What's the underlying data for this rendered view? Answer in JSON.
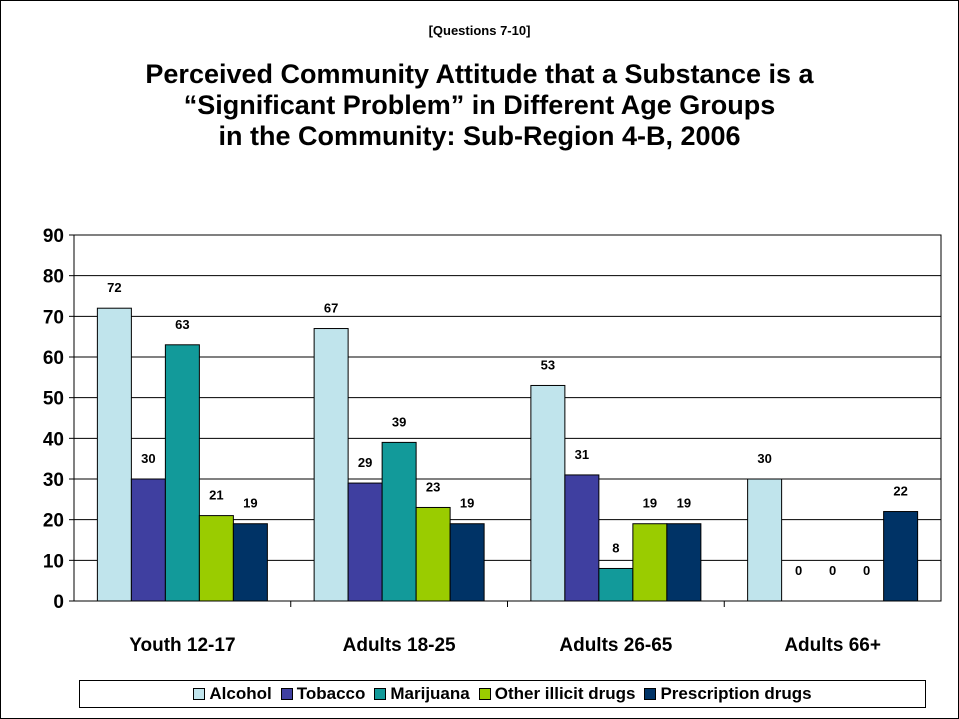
{
  "subtitle": "[Questions 7-10]",
  "title_lines": [
    "Perceived Community Attitude that a Substance is a",
    "“Significant Problem” in Different Age Groups",
    "in the Community: Sub-Region 4-B, 2006"
  ],
  "chart_data": {
    "type": "bar",
    "title": "Perceived Community Attitude that a Substance is a “Significant Problem” in Different Age Groups in the Community: Sub-Region 4-B, 2006",
    "categories": [
      "Youth 12-17",
      "Adults 18-25",
      "Adults 26-65",
      "Adults 66+"
    ],
    "series": [
      {
        "name": "Alcohol",
        "color": "#C0E4EC",
        "values": [
          72,
          67,
          53,
          30
        ]
      },
      {
        "name": "Tobacco",
        "color": "#3F3FA0",
        "values": [
          30,
          29,
          31,
          0
        ]
      },
      {
        "name": "Marijuana",
        "color": "#129A9A",
        "values": [
          63,
          39,
          8,
          0
        ]
      },
      {
        "name": "Other illicit drugs",
        "color": "#9ACC00",
        "values": [
          21,
          23,
          19,
          null
        ]
      },
      {
        "name": "Prescription drugs",
        "color": "#003366",
        "values": [
          19,
          19,
          19,
          22
        ]
      }
    ],
    "y_ticks": [
      "0",
      "10",
      "20",
      "30",
      "40",
      "50",
      "60",
      "70",
      "80",
      "90"
    ],
    "ylim": [
      0,
      90
    ],
    "grid": true,
    "legend_position": "bottom",
    "data_labels": [
      [
        "72",
        "30",
        "63",
        "21",
        "19"
      ],
      [
        "67",
        "29",
        "39",
        "23",
        "19"
      ],
      [
        "53",
        "31",
        "8",
        "19",
        "19"
      ],
      [
        "30",
        "0",
        "0",
        "0",
        "22"
      ]
    ]
  }
}
